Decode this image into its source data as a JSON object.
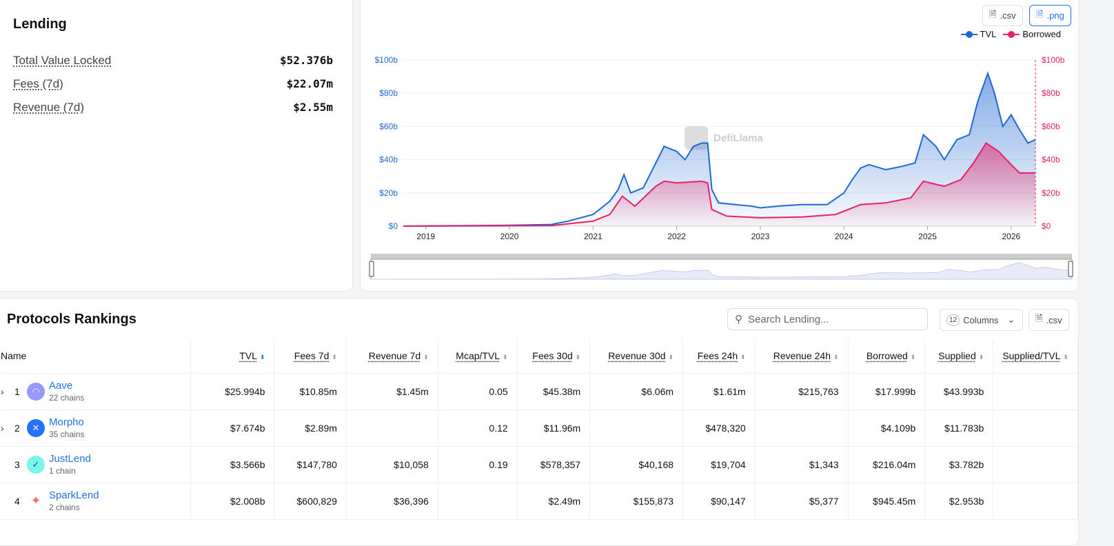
{
  "summary": {
    "title": "Lending",
    "stats": [
      {
        "label": "Total Value Locked",
        "value": "$52.376b"
      },
      {
        "label": "Fees (7d)",
        "value": "$22.07m"
      },
      {
        "label": "Revenue (7d)",
        "value": "$2.55m"
      }
    ]
  },
  "chart_toolbar": {
    "csv": ".csv",
    "png": ".png"
  },
  "colors": {
    "tvl": "#1f67d2",
    "borrowed": "#e91e63",
    "accent": "#2172e5"
  },
  "watermark": "DefiLlama",
  "chart_data": {
    "type": "area",
    "legend": [
      "TVL",
      "Borrowed"
    ],
    "legend_placement": "top-right",
    "x_ticks": [
      "2019",
      "2020",
      "2021",
      "2022",
      "2023",
      "2024",
      "2025",
      "2026"
    ],
    "y_ticks_left": [
      "$0",
      "$20b",
      "$40b",
      "$60b",
      "$80b",
      "$100b"
    ],
    "y_ticks_right": [
      "$0",
      "$20b",
      "$40b",
      "$60b",
      "$80b",
      "$100b"
    ],
    "xlim": [
      2018.73,
      2026.29
    ],
    "ylim": [
      0,
      100
    ],
    "grid": true,
    "series": [
      {
        "name": "TVL",
        "x": [
          2018.73,
          2020.0,
          2020.5,
          2020.7,
          2021.0,
          2021.2,
          2021.3,
          2021.37,
          2021.45,
          2021.6,
          2021.75,
          2021.85,
          2022.0,
          2022.1,
          2022.2,
          2022.3,
          2022.37,
          2022.42,
          2022.5,
          2022.7,
          2022.9,
          2023.0,
          2023.2,
          2023.5,
          2023.8,
          2024.0,
          2024.1,
          2024.2,
          2024.3,
          2024.5,
          2024.7,
          2024.85,
          2024.95,
          2025.1,
          2025.2,
          2025.35,
          2025.5,
          2025.6,
          2025.72,
          2025.8,
          2025.9,
          2026.0,
          2026.1,
          2026.2,
          2026.29
        ],
        "y": [
          0,
          0.5,
          1,
          3,
          7,
          15,
          22,
          31,
          20,
          23,
          38,
          48,
          45,
          40,
          48,
          50,
          50,
          22,
          14,
          13,
          12,
          11,
          12,
          13,
          13,
          20,
          28,
          35,
          37,
          34,
          36,
          38,
          55,
          48,
          40,
          52,
          55,
          75,
          92,
          80,
          60,
          67,
          58,
          50,
          52
        ]
      },
      {
        "name": "Borrowed",
        "x": [
          2018.73,
          2020.5,
          2021.0,
          2021.2,
          2021.35,
          2021.5,
          2021.75,
          2021.85,
          2022.0,
          2022.3,
          2022.37,
          2022.42,
          2022.6,
          2023.0,
          2023.5,
          2023.9,
          2024.2,
          2024.5,
          2024.8,
          2024.95,
          2025.2,
          2025.4,
          2025.55,
          2025.7,
          2025.85,
          2026.0,
          2026.1,
          2026.29
        ],
        "y": [
          0,
          0.3,
          3,
          7,
          18,
          12,
          24,
          27,
          26,
          27,
          26,
          10,
          6,
          5,
          5.5,
          7,
          13,
          14,
          17,
          27,
          24,
          28,
          38,
          50,
          45,
          37,
          32,
          32
        ]
      }
    ]
  },
  "table": {
    "title": "Protocols Rankings",
    "search_placeholder": "Search Lending...",
    "columns_count": "12",
    "columns_label": "Columns",
    "csv": ".csv",
    "headers": [
      "Name",
      "TVL",
      "Fees 7d",
      "Revenue 7d",
      "Mcap/TVL",
      "Fees 30d",
      "Revenue 30d",
      "Fees 24h",
      "Revenue 24h",
      "Borrowed",
      "Supplied",
      "Supplied/TVL"
    ],
    "rows": [
      {
        "rank": "1",
        "name": "Aave",
        "chains": "22 chains",
        "expand": true,
        "logo": "#9896ff",
        "cells": [
          "$25.994b",
          "$10.85m",
          "$1.45m",
          "0.05",
          "$45.38m",
          "$6.06m",
          "$1.61m",
          "$215,763",
          "$17.999b",
          "$43.993b",
          ""
        ]
      },
      {
        "rank": "2",
        "name": "Morpho",
        "chains": "35 chains",
        "expand": true,
        "logo": "#2470ff",
        "cells": [
          "$7.674b",
          "$2.89m",
          "",
          "0.12",
          "$11.96m",
          "",
          "$478,320",
          "",
          "$4.109b",
          "$11.783b",
          ""
        ]
      },
      {
        "rank": "3",
        "name": "JustLend",
        "chains": "1 chain",
        "expand": false,
        "logo": "#7af5ea",
        "cells": [
          "$3.566b",
          "$147,780",
          "$10,058",
          "0.19",
          "$578,357",
          "$40,168",
          "$19,704",
          "$1,343",
          "$216.04m",
          "$3.782b",
          ""
        ]
      },
      {
        "rank": "4",
        "name": "SparkLend",
        "chains": "2 chains",
        "expand": false,
        "logo": "#ffffff",
        "cells": [
          "$2.008b",
          "$600,829",
          "$36,396",
          "",
          "$2.49m",
          "$155,873",
          "$90,147",
          "$5,377",
          "$945.45m",
          "$2.953b",
          ""
        ]
      }
    ]
  }
}
